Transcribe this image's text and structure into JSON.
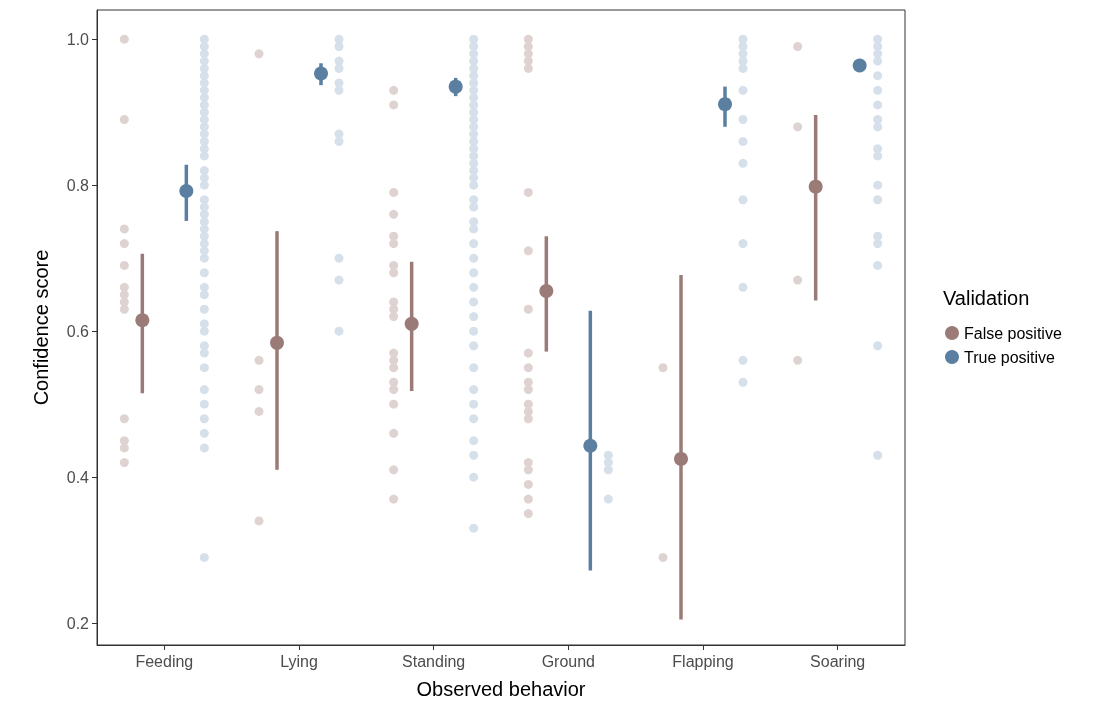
{
  "chart_data": {
    "type": "scatter",
    "xlabel": "Observed behavior",
    "ylabel": "Confidence score",
    "legend_title": "Validation",
    "legend": "right",
    "marker": "circle",
    "categories": [
      "Feeding",
      "Lying",
      "Standing",
      "Ground",
      "Flapping",
      "Soaring"
    ],
    "ylim": [
      0.17,
      1.04
    ],
    "yticks": [
      0.2,
      0.4,
      0.6,
      0.8,
      {
        "value": 1,
        "label": "1.0"
      }
    ],
    "series": [
      {
        "color": "#dfd3d2",
        "x": [
          "Feeding",
          "Feeding",
          "Feeding",
          "Feeding",
          "Feeding",
          "Feeding",
          "Feeding",
          "Feeding",
          "Feeding",
          "Feeding",
          "Feeding",
          "Feeding",
          "Feeding",
          "Lying",
          "Lying",
          "Lying",
          "Lying",
          "Lying",
          "Standing",
          "Standing",
          "Standing",
          "Standing",
          "Standing",
          "Standing",
          "Standing",
          "Standing",
          "Standing",
          "Standing",
          "Standing",
          "Standing",
          "Standing",
          "Standing",
          "Standing",
          "Standing",
          "Standing",
          "Standing",
          "Standing",
          "Standing",
          "Ground",
          "Ground",
          "Ground",
          "Ground",
          "Ground",
          "Ground",
          "Ground",
          "Ground",
          "Ground",
          "Ground",
          "Ground",
          "Ground",
          "Ground",
          "Ground",
          "Ground",
          "Ground",
          "Ground",
          "Ground",
          "Ground",
          "Ground",
          "Flapping",
          "Flapping",
          "Soaring",
          "Soaring",
          "Soaring",
          "Soaring"
        ],
        "values": [
          0.89,
          1.0,
          0.74,
          0.72,
          0.69,
          0.66,
          0.65,
          0.64,
          0.63,
          0.48,
          0.45,
          0.44,
          0.42,
          0.98,
          0.56,
          0.52,
          0.49,
          0.34,
          0.93,
          0.91,
          0.79,
          0.76,
          0.73,
          0.72,
          0.69,
          0.68,
          0.64,
          0.62,
          0.63,
          0.57,
          0.56,
          0.55,
          0.53,
          0.52,
          0.5,
          0.46,
          0.41,
          0.37,
          1.0,
          0.98,
          0.97,
          0.99,
          0.96,
          0.79,
          0.71,
          0.63,
          0.57,
          0.55,
          0.53,
          0.52,
          0.5,
          0.49,
          0.48,
          0.42,
          0.41,
          0.39,
          0.37,
          0.35,
          0.55,
          0.29,
          0.99,
          0.88,
          0.67,
          0.56
        ]
      },
      {
        "color": "#d6e0ea",
        "x": [
          "Feeding",
          "Feeding",
          "Feeding",
          "Feeding",
          "Feeding",
          "Feeding",
          "Feeding",
          "Feeding",
          "Feeding",
          "Feeding",
          "Feeding",
          "Feeding",
          "Feeding",
          "Feeding",
          "Feeding",
          "Feeding",
          "Feeding",
          "Feeding",
          "Feeding",
          "Feeding",
          "Feeding",
          "Feeding",
          "Feeding",
          "Feeding",
          "Feeding",
          "Feeding",
          "Feeding",
          "Feeding",
          "Feeding",
          "Feeding",
          "Feeding",
          "Feeding",
          "Feeding",
          "Feeding",
          "Feeding",
          "Feeding",
          "Feeding",
          "Feeding",
          "Feeding",
          "Feeding",
          "Feeding",
          "Feeding",
          "Feeding",
          "Feeding",
          "Lying",
          "Lying",
          "Lying",
          "Lying",
          "Lying",
          "Lying",
          "Lying",
          "Lying",
          "Lying",
          "Lying",
          "Lying",
          "Standing",
          "Standing",
          "Standing",
          "Standing",
          "Standing",
          "Standing",
          "Standing",
          "Standing",
          "Standing",
          "Standing",
          "Standing",
          "Standing",
          "Standing",
          "Standing",
          "Standing",
          "Standing",
          "Standing",
          "Standing",
          "Standing",
          "Standing",
          "Standing",
          "Standing",
          "Standing",
          "Standing",
          "Standing",
          "Standing",
          "Standing",
          "Standing",
          "Standing",
          "Standing",
          "Standing",
          "Standing",
          "Standing",
          "Standing",
          "Standing",
          "Standing",
          "Standing",
          "Standing",
          "Standing",
          "Standing",
          "Standing",
          "Ground",
          "Ground",
          "Ground",
          "Ground",
          "Flapping",
          "Flapping",
          "Flapping",
          "Flapping",
          "Flapping",
          "Flapping",
          "Flapping",
          "Flapping",
          "Flapping",
          "Flapping",
          "Flapping",
          "Flapping",
          "Flapping",
          "Flapping",
          "Soaring",
          "Soaring",
          "Soaring",
          "Soaring",
          "Soaring",
          "Soaring",
          "Soaring",
          "Soaring",
          "Soaring",
          "Soaring",
          "Soaring",
          "Soaring",
          "Soaring",
          "Soaring",
          "Soaring",
          "Soaring",
          "Soaring",
          "Soaring"
        ],
        "values": [
          1.0,
          0.99,
          0.98,
          0.97,
          0.96,
          0.95,
          0.94,
          0.93,
          0.92,
          0.91,
          0.9,
          0.89,
          0.88,
          0.87,
          0.86,
          0.85,
          0.84,
          0.82,
          0.81,
          0.8,
          0.78,
          0.77,
          0.76,
          0.75,
          0.74,
          0.73,
          0.72,
          0.71,
          0.7,
          0.68,
          0.66,
          0.65,
          0.63,
          0.61,
          0.6,
          0.58,
          0.57,
          0.55,
          0.52,
          0.5,
          0.48,
          0.46,
          0.44,
          0.29,
          1.0,
          0.99,
          0.97,
          0.96,
          0.94,
          0.93,
          0.87,
          0.86,
          0.7,
          0.67,
          0.6,
          1.0,
          0.99,
          0.98,
          0.97,
          0.96,
          0.95,
          0.94,
          0.93,
          0.92,
          0.91,
          0.9,
          0.89,
          0.88,
          0.87,
          0.86,
          0.85,
          0.84,
          0.83,
          0.82,
          0.81,
          0.8,
          0.78,
          0.77,
          0.75,
          0.74,
          0.72,
          0.7,
          0.68,
          0.66,
          0.64,
          0.62,
          0.6,
          0.58,
          0.55,
          0.52,
          0.5,
          0.48,
          0.45,
          0.43,
          0.4,
          0.33,
          0.43,
          0.42,
          0.41,
          0.37,
          1.0,
          0.99,
          0.98,
          0.97,
          0.96,
          0.93,
          0.89,
          0.86,
          0.83,
          0.78,
          0.72,
          0.66,
          0.56,
          0.53,
          1.0,
          0.99,
          0.98,
          0.97,
          0.95,
          0.93,
          0.91,
          0.89,
          0.88,
          0.85,
          0.84,
          0.8,
          0.78,
          0.73,
          0.72,
          0.69,
          0.58,
          0.43
        ]
      },
      {
        "name": "False positive",
        "color": "#9b7b78",
        "values": [
          0.615,
          0.584,
          0.61,
          0.655,
          0.425,
          0.798
        ],
        "errors": [
          [
            0.515,
            0.706
          ],
          [
            0.41,
            0.737
          ],
          [
            0.518,
            0.695
          ],
          [
            0.572,
            0.73
          ],
          [
            0.205,
            0.677
          ],
          [
            0.642,
            0.896
          ]
        ]
      },
      {
        "name": "True positive",
        "color": "#5a7fa0",
        "values": [
          0.792,
          0.953,
          0.935,
          0.443,
          0.911,
          0.964
        ],
        "errors": [
          [
            0.751,
            0.828
          ],
          [
            0.937,
            0.967
          ],
          [
            0.922,
            0.947
          ],
          [
            0.272,
            0.628
          ],
          [
            0.88,
            0.935
          ],
          [
            0.957,
            0.972
          ]
        ]
      }
    ]
  }
}
